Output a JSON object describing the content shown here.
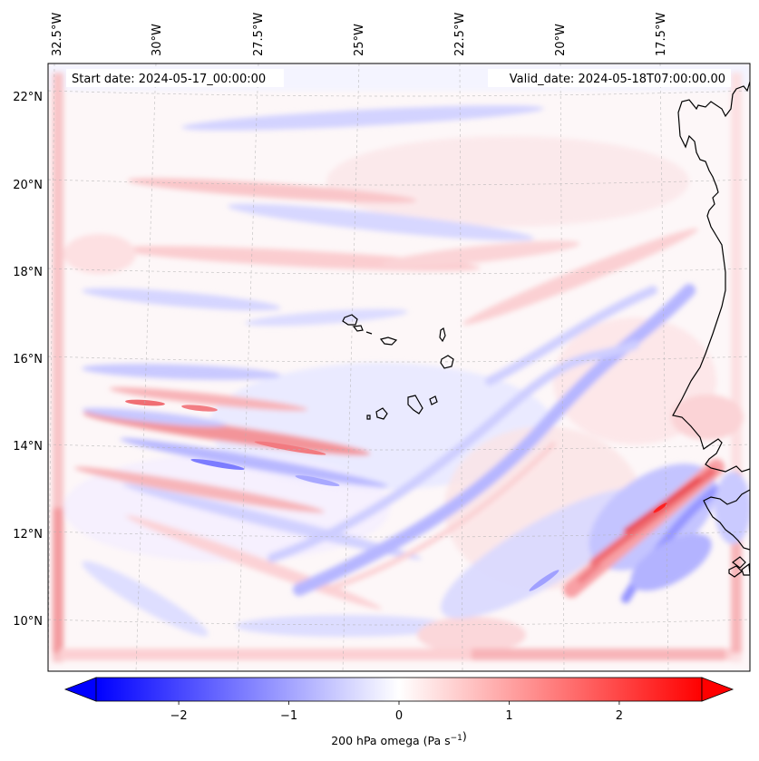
{
  "figure": {
    "start_label": "Start date: 2024-05-17_00:00:00",
    "valid_label": "Valid_date: 2024-05-18T07:00:00.00",
    "colorbar_label": "200 hPa omega (Pa s",
    "colorbar_label_exp": "−1",
    "colorbar_label_close": ")"
  },
  "chart_data": {
    "type": "heatmap",
    "variable": "200 hPa omega",
    "units": "Pa s⁻¹",
    "lon_ticks": [
      "32.5°W",
      "30°W",
      "27.5°W",
      "25°W",
      "22.5°W",
      "20°W",
      "17.5°W"
    ],
    "lat_ticks": [
      "22°N",
      "20°N",
      "18°N",
      "16°N",
      "14°N",
      "12°N",
      "10°N"
    ],
    "colorbar": {
      "ticks": [
        "−2",
        "−1",
        "0",
        "1",
        "2"
      ],
      "tick_values": [
        -2,
        -1,
        0,
        1,
        2
      ],
      "range": [
        -2.75,
        2.75
      ],
      "extend": "both",
      "colormap": "bwr",
      "low_color": "#0000ff",
      "mid_color": "#ffffff",
      "high_color": "#ff0000"
    },
    "grid": true,
    "coastline_color": "#000000"
  }
}
